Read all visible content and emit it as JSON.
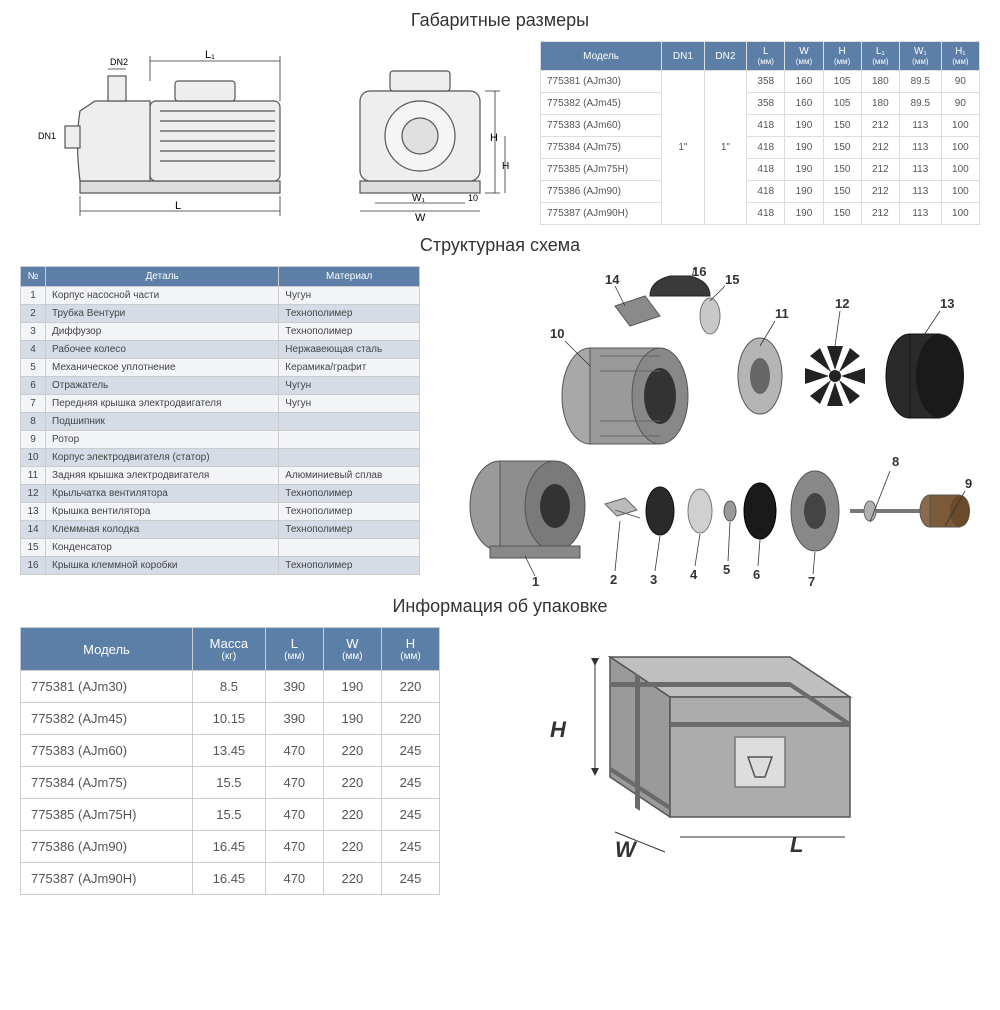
{
  "colors": {
    "header_bg": "#5b7fa6",
    "header_text": "#ffffff",
    "row_alt": "#d5dce6",
    "row_base": "#f2f4f7",
    "border": "#cccccc",
    "text": "#444444",
    "title": "#333333",
    "drawing_stroke": "#555555",
    "drawing_fill": "#e8e8e8",
    "part_dark": "#3a3a3a",
    "part_mid": "#8a8a8a",
    "part_light": "#c8c8c8"
  },
  "fonts": {
    "title_size": 18,
    "table_size": 10,
    "pack_table_size": 13
  },
  "section1": {
    "title": "Габаритные размеры",
    "headers": [
      "Модель",
      "DN1",
      "DN2",
      "L",
      "W",
      "H",
      "L₁",
      "W₁",
      "H₁"
    ],
    "header_units": [
      "",
      "",
      "",
      "(мм)",
      "(мм)",
      "(мм)",
      "(мм)",
      "(мм)",
      "(мм)"
    ],
    "dn1": "1\"",
    "dn2": "1\"",
    "rows": [
      {
        "model": "775381 (AJm30)",
        "L": "358",
        "W": "160",
        "H": "105",
        "L1": "180",
        "W1": "89.5",
        "H1": "90"
      },
      {
        "model": "775382 (AJm45)",
        "L": "358",
        "W": "160",
        "H": "105",
        "L1": "180",
        "W1": "89.5",
        "H1": "90"
      },
      {
        "model": "775383 (AJm60)",
        "L": "418",
        "W": "190",
        "H": "150",
        "L1": "212",
        "W1": "113",
        "H1": "100"
      },
      {
        "model": "775384 (AJm75)",
        "L": "418",
        "W": "190",
        "H": "150",
        "L1": "212",
        "W1": "113",
        "H1": "100"
      },
      {
        "model": "775385 (AJm75H)",
        "L": "418",
        "W": "190",
        "H": "150",
        "L1": "212",
        "W1": "113",
        "H1": "100"
      },
      {
        "model": "775386 (AJm90)",
        "L": "418",
        "W": "190",
        "H": "150",
        "L1": "212",
        "W1": "113",
        "H1": "100"
      },
      {
        "model": "775387 (AJm90H)",
        "L": "418",
        "W": "190",
        "H": "150",
        "L1": "212",
        "W1": "113",
        "H1": "100"
      }
    ],
    "dim_labels": {
      "L": "L",
      "L1": "L₁",
      "H": "H",
      "H1": "H₁",
      "W": "W",
      "W1": "W₁",
      "DN1": "DN1",
      "DN2": "DN2",
      "ten": "10"
    }
  },
  "section2": {
    "title": "Структурная схема",
    "headers": [
      "№",
      "Деталь",
      "Материал"
    ],
    "rows": [
      {
        "n": "1",
        "part": "Корпус насосной части",
        "mat": "Чугун"
      },
      {
        "n": "2",
        "part": "Трубка Вентури",
        "mat": "Технополимер"
      },
      {
        "n": "3",
        "part": "Диффузор",
        "mat": "Технополимер"
      },
      {
        "n": "4",
        "part": "Рабочее колесо",
        "mat": "Нержавеющая сталь"
      },
      {
        "n": "5",
        "part": "Механическое уплотнение",
        "mat": "Керамика/графит"
      },
      {
        "n": "6",
        "part": "Отражатель",
        "mat": "Чугун"
      },
      {
        "n": "7",
        "part": "Передняя крышка электродвигателя",
        "mat": "Чугун"
      },
      {
        "n": "8",
        "part": "Подшипник",
        "mat": ""
      },
      {
        "n": "9",
        "part": "Ротор",
        "mat": ""
      },
      {
        "n": "10",
        "part": "Корпус электродвигателя (статор)",
        "mat": ""
      },
      {
        "n": "11",
        "part": "Задняя крышка электродвигателя",
        "mat": "Алюминиевый сплав"
      },
      {
        "n": "12",
        "part": "Крыльчатка вентилятора",
        "mat": "Технополимер"
      },
      {
        "n": "13",
        "part": "Крышка вентилятора",
        "mat": "Технополимер"
      },
      {
        "n": "14",
        "part": "Клеммная колодка",
        "mat": "Технополимер"
      },
      {
        "n": "15",
        "part": "Конденсатор",
        "mat": ""
      },
      {
        "n": "16",
        "part": "Крышка клеммной коробки",
        "mat": "Технополимер"
      }
    ],
    "callouts": [
      "1",
      "2",
      "3",
      "4",
      "5",
      "6",
      "7",
      "8",
      "9",
      "10",
      "11",
      "12",
      "13",
      "14",
      "15",
      "16"
    ]
  },
  "section3": {
    "title": "Информация об упаковке",
    "headers": [
      "Модель",
      "Масса",
      "L",
      "W",
      "H"
    ],
    "header_units": [
      "",
      "(кг)",
      "(мм)",
      "(мм)",
      "(мм)"
    ],
    "rows": [
      {
        "model": "775381 (AJm30)",
        "mass": "8.5",
        "L": "390",
        "W": "190",
        "H": "220"
      },
      {
        "model": "775382 (AJm45)",
        "mass": "10.15",
        "L": "390",
        "W": "190",
        "H": "220"
      },
      {
        "model": "775383 (AJm60)",
        "mass": "13.45",
        "L": "470",
        "W": "220",
        "H": "245"
      },
      {
        "model": "775384 (AJm75)",
        "mass": "15.5",
        "L": "470",
        "W": "220",
        "H": "245"
      },
      {
        "model": "775385 (AJm75H)",
        "mass": "15.5",
        "L": "470",
        "W": "220",
        "H": "245"
      },
      {
        "model": "775386 (AJm90)",
        "mass": "16.45",
        "L": "470",
        "W": "220",
        "H": "245"
      },
      {
        "model": "775387 (AJm90H)",
        "mass": "16.45",
        "L": "470",
        "W": "220",
        "H": "245"
      }
    ],
    "dim_labels": {
      "H": "H",
      "W": "W",
      "L": "L"
    }
  }
}
